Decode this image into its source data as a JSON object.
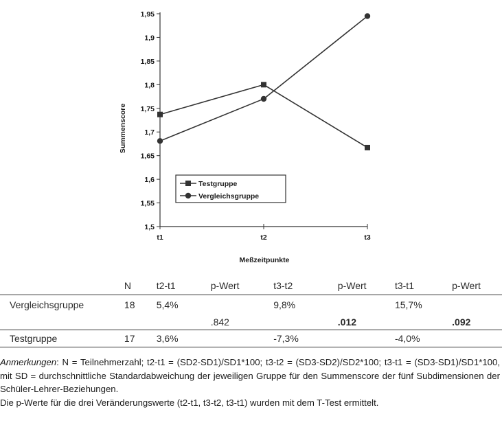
{
  "chart_data": {
    "type": "line",
    "categories": [
      "t1",
      "t2",
      "t3"
    ],
    "series": [
      {
        "name": "Testgruppe",
        "marker": "square",
        "values": [
          1.737,
          1.8,
          1.667
        ]
      },
      {
        "name": "Vergleichsgruppe",
        "marker": "circle",
        "values": [
          1.681,
          1.77,
          1.945
        ]
      }
    ],
    "xlabel": "Meßzeitpunkte",
    "ylabel": "Summenscore",
    "ylim": [
      1.5,
      1.95
    ],
    "yticks": [
      "1,5",
      "1,55",
      "1,6",
      "1,65",
      "1,7",
      "1,75",
      "1,8",
      "1,85",
      "1,9",
      "1,95"
    ],
    "legend_position": "lower-left",
    "grid": false,
    "line_color": "#333333"
  },
  "table": {
    "headers": [
      "",
      "N",
      "t2-t1",
      "p-Wert",
      "t3-t2",
      "p-Wert",
      "t3-t1",
      "p-Wert"
    ],
    "rows": [
      [
        "Vergleichsgruppe",
        "18",
        "5,4%",
        "",
        "9,8%",
        "",
        "15,7%",
        ""
      ],
      [
        "",
        "",
        "",
        ".842",
        "",
        ".012",
        "",
        ".092"
      ],
      [
        "Testgruppe",
        "17",
        "3,6%",
        "",
        "-7,3%",
        "",
        "-4,0%",
        ""
      ]
    ]
  },
  "notes": {
    "label": "Anmerkungen",
    "text": ": N = Teilnehmerzahl; t2-t1 = (SD2-SD1)/SD1*100; t3-t2 = (SD3-SD2)/SD2*100; t3-t1 = (SD3-SD1)/SD1*100, mit SD = durchschnittliche Standardabweichung der jeweiligen Gruppe für den Summenscore der fünf Subdimensionen der Schüler-Lehrer-Beziehungen.",
    "line2": "Die p-Werte für die drei Veränderungswerte (t2-t1, t3-t2, t3-t1) wurden mit dem T-Test ermittelt."
  }
}
